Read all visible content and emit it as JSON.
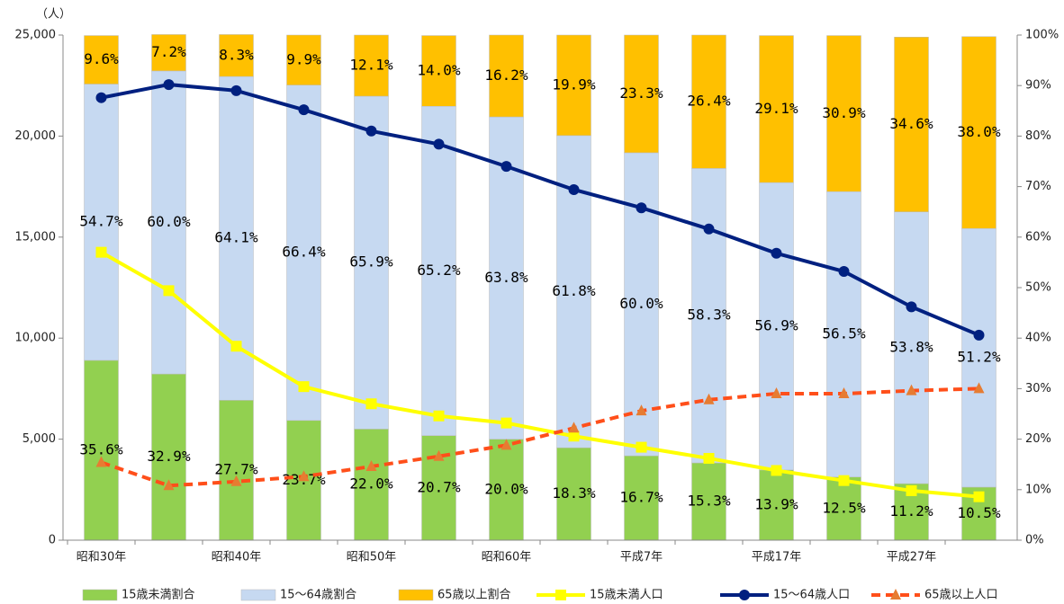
{
  "chart_data": {
    "type": "bar",
    "ylabel": "（人）",
    "categories": [
      "昭和30年",
      null,
      "昭和40年",
      null,
      "昭和50年",
      null,
      "昭和60年",
      null,
      "平成7年",
      null,
      "平成17年",
      null,
      "平成27年",
      null
    ],
    "ylim": [
      0,
      25000
    ],
    "yticks": [
      0,
      {
        "value": 5000,
        "label": "5,000"
      },
      {
        "value": 10000,
        "label": "10,000"
      },
      {
        "value": 15000,
        "label": "15,000"
      },
      {
        "value": 20000,
        "label": "20,000"
      },
      {
        "value": 25000,
        "label": "25,000"
      }
    ],
    "y2lim": [
      0,
      100
    ],
    "y2ticks": [
      {
        "value": 0,
        "label": "0%"
      },
      {
        "value": 10,
        "label": "10%"
      },
      {
        "value": 20,
        "label": "20%"
      },
      {
        "value": 30,
        "label": "30%"
      },
      {
        "value": 40,
        "label": "40%"
      },
      {
        "value": 50,
        "label": "50%"
      },
      {
        "value": 60,
        "label": "60%"
      },
      {
        "value": 70,
        "label": "70%"
      },
      {
        "value": 80,
        "label": "80%"
      },
      {
        "value": 90,
        "label": "90%"
      },
      {
        "value": 100,
        "label": "100%"
      }
    ],
    "legend": "bottom",
    "series": [
      {
        "name": "15歳未満割合",
        "type": "bar",
        "axis": "y2",
        "color": "#92d050",
        "values": [
          35.6,
          32.9,
          27.7,
          23.7,
          22.0,
          20.7,
          20.0,
          18.3,
          16.7,
          15.3,
          13.9,
          12.5,
          11.2,
          10.5
        ],
        "value_labels": [
          "35.6%",
          "32.9%",
          "27.7%",
          "23.7%",
          "22.0%",
          "20.7%",
          "20.0%",
          "18.3%",
          "16.7%",
          "15.3%",
          "13.9%",
          "12.5%",
          "11.2%",
          "10.5%"
        ]
      },
      {
        "name": "15～64歳割合",
        "type": "bar",
        "axis": "y2",
        "color": "#c6d9f1",
        "values": [
          54.7,
          60.0,
          64.1,
          66.4,
          65.9,
          65.2,
          63.8,
          61.8,
          60.0,
          58.3,
          56.9,
          56.5,
          53.8,
          51.2
        ],
        "value_labels": [
          "54.7%",
          "60.0%",
          "64.1%",
          "66.4%",
          "65.9%",
          "65.2%",
          "63.8%",
          "61.8%",
          "60.0%",
          "58.3%",
          "56.9%",
          "56.5%",
          "53.8%",
          "51.2%"
        ]
      },
      {
        "name": "65歳以上割合",
        "type": "bar",
        "axis": "y2",
        "color": "#ffc000",
        "values": [
          9.6,
          7.2,
          8.3,
          9.9,
          12.1,
          14.0,
          16.2,
          19.9,
          23.3,
          26.4,
          29.1,
          30.9,
          34.6,
          38.0
        ],
        "value_labels": [
          "9.6%",
          "7.2%",
          "8.3%",
          "9.9%",
          "12.1%",
          "14.0%",
          "16.2%",
          "19.9%",
          "23.3%",
          "26.4%",
          "29.1%",
          "30.9%",
          "34.6%",
          "38.0%"
        ]
      },
      {
        "name": "15歳未満人口",
        "type": "line",
        "color": "#ffff00",
        "marker": "square",
        "values": [
          14250,
          12350,
          9600,
          7600,
          6750,
          6150,
          5800,
          5150,
          4600,
          4050,
          3450,
          2950,
          2450,
          2150
        ]
      },
      {
        "name": "15～64歳人口",
        "type": "line",
        "color": "#002080",
        "marker": "circle",
        "values": [
          21900,
          22550,
          22250,
          21300,
          20250,
          19600,
          18500,
          17350,
          16450,
          15400,
          14200,
          13300,
          11550,
          10150
        ]
      },
      {
        "name": "65歳以上人口",
        "type": "line",
        "color": "#ff4f1a",
        "marker": "triangle",
        "marker_color": "#e67c32",
        "dashed": true,
        "values": [
          3850,
          2700,
          2900,
          3150,
          3650,
          4150,
          4700,
          5550,
          6400,
          6950,
          7250,
          7250,
          7400,
          7500
        ]
      }
    ]
  }
}
